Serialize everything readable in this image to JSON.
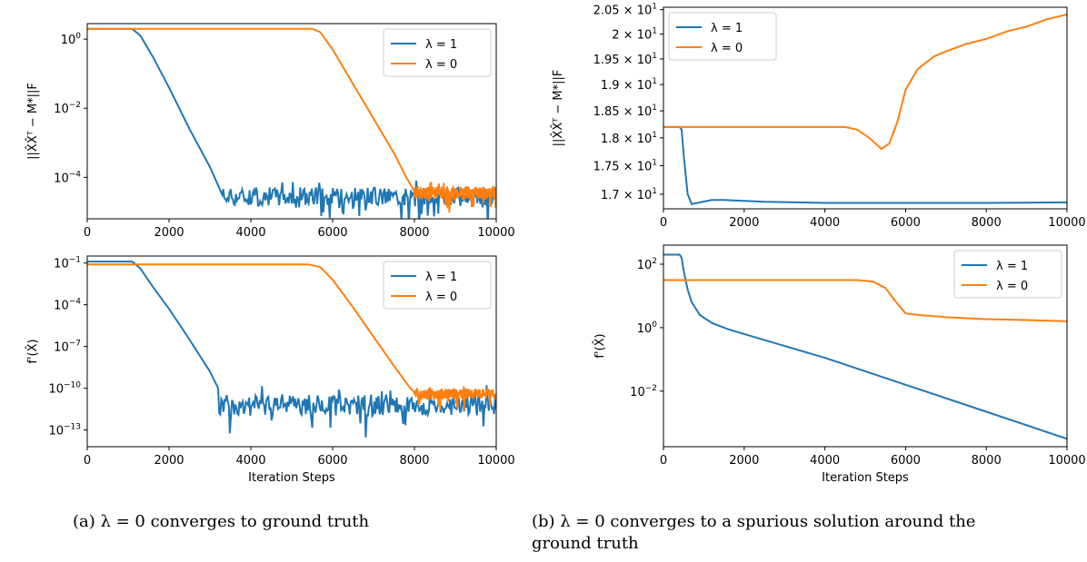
{
  "colors": {
    "lambda1": "#1f77b4",
    "lambda0": "#ff7f0e",
    "axis": "#000000",
    "legend_border": "#cccccc"
  },
  "captions": {
    "a": "(a) λ = 0 converges to ground truth",
    "b": "(b) λ = 0 converges to a spurious solution around the ground truth"
  },
  "chart_data": [
    {
      "type": "line",
      "panel": "a-top",
      "ylabel": "||X̂X̂ᵀ − M*||F",
      "xlabel": "",
      "xlim": [
        0,
        10000
      ],
      "ylim_log10": [
        -5.2,
        0.45
      ],
      "y_scale": "log",
      "xticks": [
        0,
        2000,
        4000,
        6000,
        8000,
        10000
      ],
      "yticks": [
        {
          "value_log10": 0,
          "label": "10^0"
        },
        {
          "value_log10": -2,
          "label": "10^-2"
        },
        {
          "value_log10": -4,
          "label": "10^-4"
        }
      ],
      "legend_position": "top-right",
      "series": [
        {
          "name": "λ = 1",
          "color_key": "lambda1",
          "x": [
            0,
            1100,
            1300,
            1600,
            2000,
            2500,
            3000,
            3300,
            10000
          ],
          "y_log10": [
            0.3,
            0.3,
            0.1,
            -0.5,
            -1.4,
            -2.6,
            -3.7,
            -4.5,
            -4.5
          ],
          "noise": {
            "from_x": 3300,
            "to_x": 10000,
            "center_log10": -4.55,
            "amp": 0.45
          }
        },
        {
          "name": "λ = 0",
          "color_key": "lambda0",
          "x": [
            0,
            5500,
            5700,
            6000,
            6500,
            7000,
            7500,
            7800,
            8000,
            10000
          ],
          "y_log10": [
            0.3,
            0.3,
            0.2,
            -0.3,
            -1.3,
            -2.3,
            -3.3,
            -4.0,
            -4.4,
            -4.4
          ],
          "noise": {
            "from_x": 8000,
            "to_x": 10000,
            "center_log10": -4.45,
            "amp": 0.3
          }
        }
      ]
    },
    {
      "type": "line",
      "panel": "a-bottom",
      "ylabel": "f'(X̂)",
      "xlabel": "Iteration Steps",
      "xlim": [
        0,
        10000
      ],
      "ylim_log10": [
        -14.2,
        -0.5
      ],
      "y_scale": "log",
      "xticks": [
        0,
        2000,
        4000,
        6000,
        8000,
        10000
      ],
      "yticks": [
        {
          "value_log10": -1,
          "label": "10^-1"
        },
        {
          "value_log10": -4,
          "label": "10^-4"
        },
        {
          "value_log10": -7,
          "label": "10^-7"
        },
        {
          "value_log10": -10,
          "label": "10^-10"
        },
        {
          "value_log10": -13,
          "label": "10^-13"
        }
      ],
      "legend_position": "top-right",
      "series": [
        {
          "name": "λ = 1",
          "color_key": "lambda1",
          "x": [
            0,
            1100,
            1300,
            1600,
            2000,
            2500,
            3000,
            3200,
            10000
          ],
          "y_log10": [
            -0.9,
            -0.9,
            -1.4,
            -2.7,
            -4.3,
            -6.5,
            -8.8,
            -10.0,
            -10.0
          ],
          "noise": {
            "from_x": 3200,
            "to_x": 10000,
            "center_log10": -11.2,
            "amp": 1.3
          }
        },
        {
          "name": "λ = 0",
          "color_key": "lambda0",
          "x": [
            0,
            5400,
            5700,
            6000,
            6500,
            7000,
            7500,
            7900,
            8000,
            10000
          ],
          "y_log10": [
            -1.1,
            -1.1,
            -1.3,
            -2.2,
            -4.2,
            -6.3,
            -8.4,
            -10.0,
            -10.3,
            -10.3
          ],
          "noise": {
            "from_x": 8000,
            "to_x": 10000,
            "center_log10": -10.4,
            "amp": 0.6
          }
        }
      ]
    },
    {
      "type": "line",
      "panel": "b-top",
      "ylabel": "||X̂X̂ᵀ − M*||F",
      "xlabel": "",
      "xlim": [
        0,
        10000
      ],
      "ylim": [
        16.75,
        20.55
      ],
      "y_scale": "log",
      "xticks": [
        0,
        2000,
        4000,
        6000,
        8000,
        10000
      ],
      "yticks": [
        {
          "value": 17.0,
          "label": "1.7 × 10^1"
        },
        {
          "value": 17.5,
          "label": "1.75 × 10^1"
        },
        {
          "value": 18.0,
          "label": "1.8 × 10^1"
        },
        {
          "value": 18.5,
          "label": "1.85 × 10^1"
        },
        {
          "value": 19.0,
          "label": "1.9 × 10^1"
        },
        {
          "value": 19.5,
          "label": "1.95 × 10^1"
        },
        {
          "value": 20.0,
          "label": "2 × 10^1"
        },
        {
          "value": 20.5,
          "label": "2.05 × 10^1"
        }
      ],
      "legend_position": "top-left",
      "series": [
        {
          "name": "λ = 1",
          "color_key": "lambda1",
          "x": [
            0,
            400,
            450,
            500,
            600,
            700,
            900,
            1200,
            1500,
            2500,
            4000,
            6000,
            8000,
            10000
          ],
          "y": [
            18.2,
            18.2,
            18.15,
            17.7,
            17.0,
            16.83,
            16.86,
            16.9,
            16.9,
            16.87,
            16.85,
            16.85,
            16.85,
            16.86
          ]
        },
        {
          "name": "λ = 0",
          "color_key": "lambda0",
          "x": [
            0,
            4500,
            4800,
            5100,
            5400,
            5600,
            5800,
            6000,
            6300,
            6700,
            7000,
            7500,
            8000,
            8500,
            9000,
            9500,
            10000
          ],
          "y": [
            18.2,
            18.2,
            18.15,
            18.0,
            17.8,
            17.9,
            18.3,
            18.9,
            19.3,
            19.55,
            19.65,
            19.8,
            19.9,
            20.05,
            20.15,
            20.3,
            20.4
          ]
        }
      ]
    },
    {
      "type": "line",
      "panel": "b-bottom",
      "ylabel": "f'(X̂)",
      "xlabel": "Iteration Steps",
      "xlim": [
        0,
        10000
      ],
      "ylim_log10": [
        -3.75,
        2.6
      ],
      "y_scale": "log",
      "xticks": [
        0,
        2000,
        4000,
        6000,
        8000,
        10000
      ],
      "yticks": [
        {
          "value_log10": 2,
          "label": "10^2"
        },
        {
          "value_log10": 0,
          "label": "10^0"
        },
        {
          "value_log10": -2,
          "label": "10^-2"
        }
      ],
      "legend_position": "top-right",
      "series": [
        {
          "name": "λ = 1",
          "color_key": "lambda1",
          "x": [
            0,
            400,
            450,
            500,
            600,
            700,
            900,
            1200,
            1600,
            2000,
            4000,
            6000,
            8000,
            10000
          ],
          "y_log10": [
            2.3,
            2.3,
            2.2,
            1.8,
            1.2,
            0.8,
            0.4,
            0.15,
            -0.05,
            -0.2,
            -0.95,
            -1.8,
            -2.65,
            -3.5
          ]
        },
        {
          "name": "λ = 0",
          "color_key": "lambda0",
          "x": [
            0,
            4800,
            5200,
            5500,
            5800,
            6000,
            6300,
            7000,
            8000,
            9000,
            10000
          ],
          "y_log10": [
            1.5,
            1.5,
            1.45,
            1.25,
            0.75,
            0.45,
            0.4,
            0.33,
            0.27,
            0.24,
            0.2
          ]
        }
      ]
    }
  ]
}
